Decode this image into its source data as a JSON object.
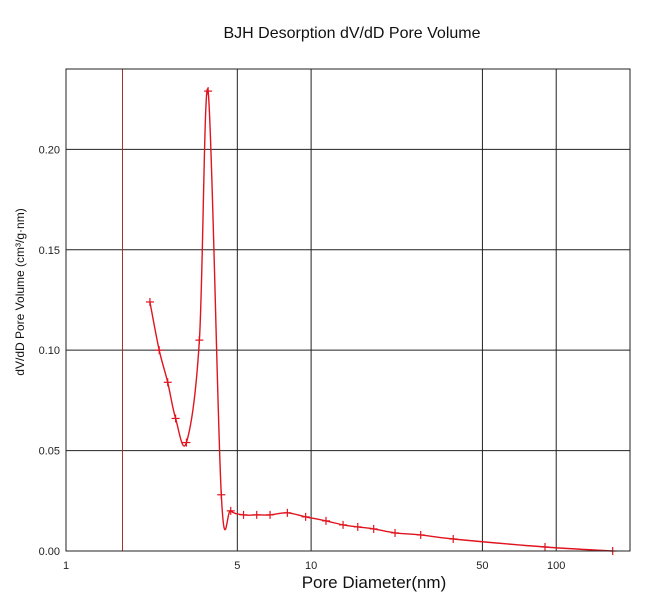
{
  "chart_data": {
    "type": "line",
    "title": "BJH Desorption dV/dD Pore Volume",
    "xlabel": "Pore Diameter(nm)",
    "ylabel": "dV/dD Pore Volume (cm³/g·nm)",
    "x_scale": "log",
    "xlim": [
      1,
      200
    ],
    "ylim": [
      0,
      0.24
    ],
    "x_ticks": [
      {
        "value": 1,
        "label": "1"
      },
      {
        "value": 5,
        "label": "5"
      },
      {
        "value": 10,
        "label": "10"
      },
      {
        "value": 50,
        "label": "50"
      },
      {
        "value": 100,
        "label": "100"
      }
    ],
    "y_ticks": [
      {
        "value": 0.0,
        "label": "0.00"
      },
      {
        "value": 0.05,
        "label": "0.05"
      },
      {
        "value": 0.1,
        "label": "0.10"
      },
      {
        "value": 0.15,
        "label": "0.15"
      },
      {
        "value": 0.2,
        "label": "0.20"
      }
    ],
    "grid": true,
    "reference_line_x": 1.7,
    "series": [
      {
        "color": "#e0141e",
        "x": [
          2.2,
          2.4,
          2.6,
          2.8,
          3.1,
          3.5,
          3.8,
          4.3,
          4.7,
          5.3,
          6.0,
          6.8,
          8.0,
          9.5,
          11.5,
          13.5,
          15.5,
          18.0,
          22.0,
          28.0,
          38.0,
          90.0,
          170.0
        ],
        "y": [
          0.124,
          0.1,
          0.084,
          0.066,
          0.054,
          0.105,
          0.229,
          0.028,
          0.02,
          0.018,
          0.018,
          0.018,
          0.019,
          0.017,
          0.015,
          0.013,
          0.012,
          0.011,
          0.009,
          0.008,
          0.006,
          0.002,
          0.0
        ]
      }
    ]
  }
}
